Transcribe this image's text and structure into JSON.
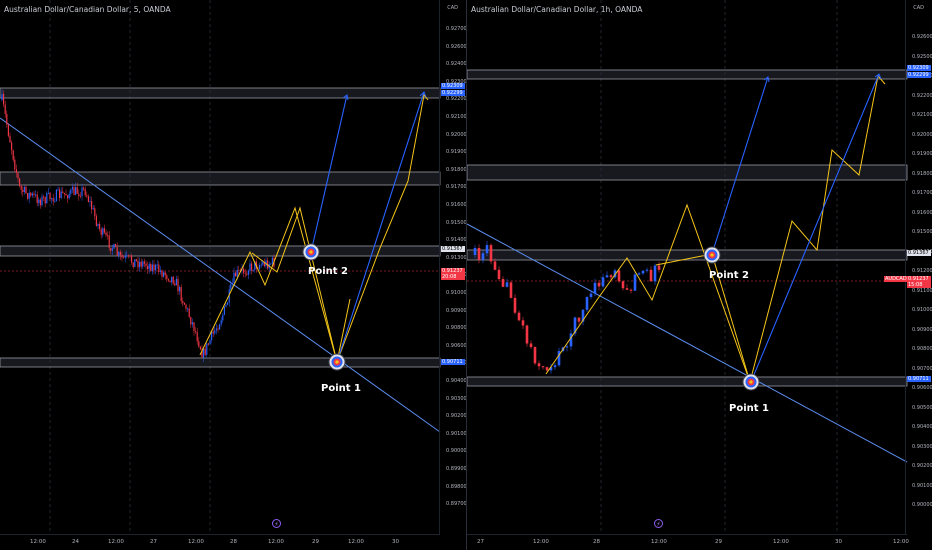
{
  "left": {
    "title": "Australian Dollar/Canadian Dollar, 5, OANDA",
    "currency": "CAD",
    "price_ticks": [
      "0.92700",
      "0.92600",
      "0.92400",
      "0.92300",
      "0.92200",
      "0.92100",
      "0.92000",
      "0.91900",
      "0.91800",
      "0.91700",
      "0.91600",
      "0.91500",
      "0.91400",
      "0.91300",
      "0.91100",
      "0.91000",
      "0.90900",
      "0.90800",
      "0.90600",
      "0.90500",
      "0.90400",
      "0.90300",
      "0.90200",
      "0.90100",
      "0.90000",
      "0.89900",
      "0.89800",
      "0.89700"
    ],
    "badges": {
      "top1": "0.92309",
      "top2": "0.92299",
      "mid": "0.91367",
      "price": "0.91237",
      "countdown": "20:08",
      "bottom": "0.90711"
    },
    "time_ticks": [
      "12:00",
      "24",
      "12:00",
      "27",
      "12:00",
      "28",
      "12:00",
      "29",
      "12:00",
      "30"
    ],
    "point1": "Point 1",
    "point2": "Point 2"
  },
  "right": {
    "title": "Australian Dollar/Canadian Dollar, 1h, OANDA",
    "currency": "CAD",
    "price_ticks": [
      "0.92600",
      "0.92500",
      "0.92400",
      "0.92200",
      "0.92100",
      "0.92000",
      "0.91900",
      "0.91800",
      "0.91700",
      "0.91600",
      "0.91500",
      "0.91400",
      "0.91200",
      "0.91100",
      "0.91000",
      "0.90900",
      "0.90800",
      "0.90700",
      "0.90600",
      "0.90500",
      "0.90400",
      "0.90300",
      "0.90200",
      "0.90100",
      "0.90000"
    ],
    "badges": {
      "top1": "0.92309",
      "top2": "0.92299",
      "mid": "0.91367",
      "symbol": "AUDCAD",
      "price": "0.91237",
      "countdown": "15:08",
      "bottom": "0.90711"
    },
    "time_ticks": [
      "27",
      "12:00",
      "28",
      "12:00",
      "29",
      "12:00",
      "30",
      "12:00"
    ],
    "point1": "Point 1",
    "point2": "Point 2"
  },
  "colors": {
    "bull": "#2962ff",
    "bear": "#f23645",
    "zone": "#2a2e39",
    "yellow": "#f5c518",
    "blue": "#2962ff",
    "trend": "#5b8def"
  }
}
